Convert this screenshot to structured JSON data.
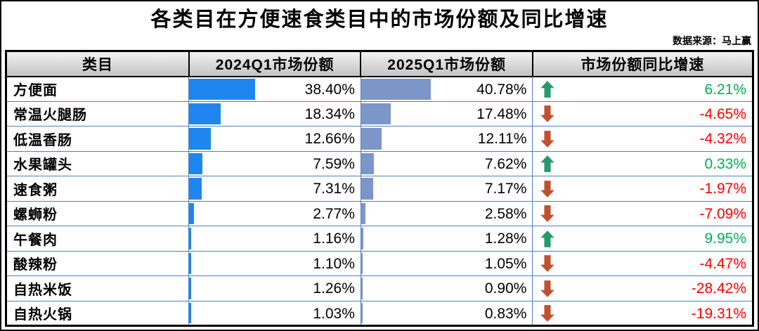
{
  "title": "各类目在方便速食类目中的市场份额及同比增速",
  "source_note": "数据来源：马上赢",
  "table": {
    "headers": [
      "类目",
      "2024Q1市场份额",
      "2025Q1市场份额",
      "市场份额同比增速"
    ]
  },
  "rows": [
    {
      "category": "方便面",
      "share_2024": 38.4,
      "share_2024_text": "38.40%",
      "share_2025": 40.78,
      "share_2025_text": "40.78%",
      "trend": "up",
      "growth_text": "6.21%"
    },
    {
      "category": "常温火腿肠",
      "share_2024": 18.34,
      "share_2024_text": "18.34%",
      "share_2025": 17.48,
      "share_2025_text": "17.48%",
      "trend": "down",
      "growth_text": "-4.65%"
    },
    {
      "category": "低温香肠",
      "share_2024": 12.66,
      "share_2024_text": "12.66%",
      "share_2025": 12.11,
      "share_2025_text": "12.11%",
      "trend": "down",
      "growth_text": "-4.32%"
    },
    {
      "category": "水果罐头",
      "share_2024": 7.59,
      "share_2024_text": "7.59%",
      "share_2025": 7.62,
      "share_2025_text": "7.62%",
      "trend": "up",
      "growth_text": "0.33%"
    },
    {
      "category": "速食粥",
      "share_2024": 7.31,
      "share_2024_text": "7.31%",
      "share_2025": 7.17,
      "share_2025_text": "7.17%",
      "trend": "down",
      "growth_text": "-1.97%"
    },
    {
      "category": "螺蛳粉",
      "share_2024": 2.77,
      "share_2024_text": "2.77%",
      "share_2025": 2.58,
      "share_2025_text": "2.58%",
      "trend": "down",
      "growth_text": "-7.09%"
    },
    {
      "category": "午餐肉",
      "share_2024": 1.16,
      "share_2024_text": "1.16%",
      "share_2025": 1.28,
      "share_2025_text": "1.28%",
      "trend": "up",
      "growth_text": "9.95%"
    },
    {
      "category": "酸辣粉",
      "share_2024": 1.1,
      "share_2024_text": "1.10%",
      "share_2025": 1.05,
      "share_2025_text": "1.05%",
      "trend": "down",
      "growth_text": "-4.47%"
    },
    {
      "category": "自热米饭",
      "share_2024": 1.26,
      "share_2024_text": "1.26%",
      "share_2025": 0.9,
      "share_2025_text": "0.90%",
      "trend": "down",
      "growth_text": "-28.42%"
    },
    {
      "category": "自热火锅",
      "share_2024": 1.03,
      "share_2024_text": "1.03%",
      "share_2025": 0.83,
      "share_2025_text": "0.83%",
      "trend": "down",
      "growth_text": "-19.31%"
    }
  ],
  "colors": {
    "bar_2024": "#1e86ee",
    "bar_2025": "#7d96c9",
    "arrow_up": "#279a6d",
    "arrow_down": "#c0502f",
    "positive_text": "#00b050",
    "negative_text": "#ff0000",
    "grid_line": "#4f81bd"
  },
  "chart_data": {
    "type": "table",
    "title": "各类目在方便速食类目中的市场份额及同比增速",
    "source": "数据来源：马上赢",
    "unit": "%",
    "bar_scale": [
      0,
      100
    ],
    "categories": [
      "方便面",
      "常温火腿肠",
      "低温香肠",
      "水果罐头",
      "速食粥",
      "螺蛳粉",
      "午餐肉",
      "酸辣粉",
      "自热米饭",
      "自热火锅"
    ],
    "series": [
      {
        "name": "2024Q1市场份额",
        "values": [
          38.4,
          18.34,
          12.66,
          7.59,
          7.31,
          2.77,
          1.16,
          1.1,
          1.26,
          1.03
        ]
      },
      {
        "name": "2025Q1市场份额",
        "values": [
          40.78,
          17.48,
          12.11,
          7.62,
          7.17,
          2.58,
          1.28,
          1.05,
          0.9,
          0.83
        ]
      },
      {
        "name": "市场份额同比增速",
        "values": [
          6.21,
          -4.65,
          -4.32,
          0.33,
          -1.97,
          -7.09,
          9.95,
          -4.47,
          -28.42,
          -19.31
        ]
      }
    ]
  }
}
